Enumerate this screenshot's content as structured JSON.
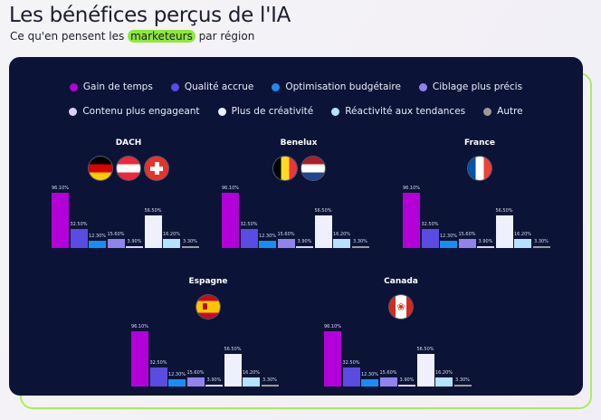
{
  "header": {
    "title": "Les bénéfices perçus de l'IA",
    "subtitle_before": "Ce qu'en pensent les ",
    "subtitle_highlight": "marketeurs",
    "subtitle_after": " par région"
  },
  "chart_data": {
    "type": "bar",
    "unit": "%",
    "legend_position": "top",
    "categories": [
      "Gain de temps",
      "Qualité accrue",
      "Optimisation budgétaire",
      "Ciblage plus précis",
      "Contenu plus engageant",
      "Plus de créativité",
      "Réactivité aux tendances",
      "Autre"
    ],
    "colors": [
      "#b400d8",
      "#5a4be2",
      "#1a8df2",
      "#9282ec",
      "#d9d1f6",
      "#eef0fd",
      "#b5e2fc",
      "#9a9a9a"
    ],
    "regions": [
      {
        "name": "DACH",
        "flags": [
          "germany-flag",
          "austria-flag",
          "switzerland-flag"
        ],
        "values": [
          96.1,
          32.5,
          12.3,
          15.6,
          3.9,
          56.5,
          16.2,
          3.3
        ],
        "labels": [
          "96.10%",
          "32.50%",
          "12.30%",
          "15.60%",
          "3.90%",
          "56.50%",
          "16.20%",
          "3.30%"
        ]
      },
      {
        "name": "Benelux",
        "flags": [
          "belgium-flag",
          "netherlands-flag"
        ],
        "values": [
          96.1,
          32.5,
          12.3,
          15.6,
          3.9,
          56.5,
          16.2,
          3.3
        ],
        "labels": [
          "96.10%",
          "32.50%",
          "12.30%",
          "15.60%",
          "3.90%",
          "56.50%",
          "16.20%",
          "3.30%"
        ]
      },
      {
        "name": "France",
        "flags": [
          "france-flag"
        ],
        "values": [
          96.1,
          32.5,
          12.3,
          15.6,
          3.9,
          56.5,
          16.2,
          3.3
        ],
        "labels": [
          "96.10%",
          "32.50%",
          "12.30%",
          "15.60%",
          "3.90%",
          "56.50%",
          "16.20%",
          "3.30%"
        ]
      },
      {
        "name": "Espagne",
        "flags": [
          "spain-flag"
        ],
        "values": [
          96.1,
          32.5,
          12.3,
          15.6,
          3.9,
          56.5,
          16.2,
          3.3
        ],
        "labels": [
          "96.10%",
          "32.50%",
          "12.30%",
          "15.60%",
          "3.90%",
          "56.50%",
          "16.20%",
          "3.30%"
        ]
      },
      {
        "name": "Canada",
        "flags": [
          "canada-flag"
        ],
        "values": [
          96.1,
          32.5,
          12.3,
          15.6,
          3.9,
          56.5,
          16.2,
          3.3
        ],
        "labels": [
          "96.10%",
          "32.50%",
          "12.30%",
          "15.60%",
          "3.90%",
          "56.50%",
          "16.20%",
          "3.30%"
        ]
      }
    ]
  }
}
